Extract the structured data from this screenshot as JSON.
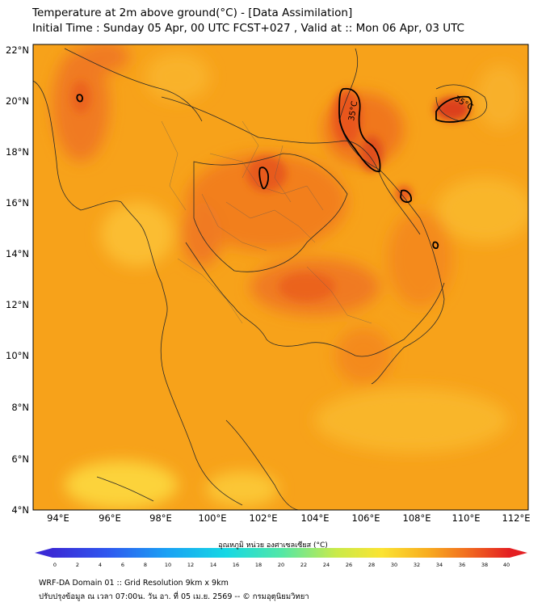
{
  "header": {
    "title_line1": "Temperature at 2m above ground(°C) - [Data Assimilation]",
    "title_line2": "Initial Time : Sunday 05 Apr, 00 UTC FCST+027 , Valid at :: Mon 06 Apr, 03 UTC"
  },
  "map": {
    "lat_labels": [
      "22°N",
      "20°N",
      "18°N",
      "16°N",
      "14°N",
      "12°N",
      "10°N",
      "8°N",
      "6°N",
      "4°N"
    ],
    "lon_labels": [
      "94°E",
      "96°E",
      "98°E",
      "100°E",
      "102°E",
      "104°E",
      "106°E",
      "108°E",
      "110°E",
      "112°E"
    ],
    "contour_labels": [
      "35°C",
      "35°C"
    ],
    "colors": {
      "base": "#f7a21a",
      "warm": "#f48a1c",
      "hot": "#e9561e",
      "cool": "#fcd33b",
      "contour": "#000000",
      "border": "#2a2a2a"
    }
  },
  "colorbar": {
    "title": "อุณหภูมิ หน่วย องศาเซลเซียส (°C)",
    "ticks": [
      "0",
      "2",
      "4",
      "6",
      "8",
      "10",
      "12",
      "14",
      "16",
      "18",
      "20",
      "22",
      "24",
      "26",
      "28",
      "30",
      "32",
      "34",
      "36",
      "38",
      "40"
    ]
  },
  "footer": {
    "line1": "WRF-DA Domain 01 :: Grid Resolution 9km x 9km",
    "line2": "ปรับปรุงข้อมูล ณ เวลา 07:00น. วัน อา. ที่ 05 เม.ย. 2569 -- © กรมอุตุนิยมวิทยา"
  }
}
